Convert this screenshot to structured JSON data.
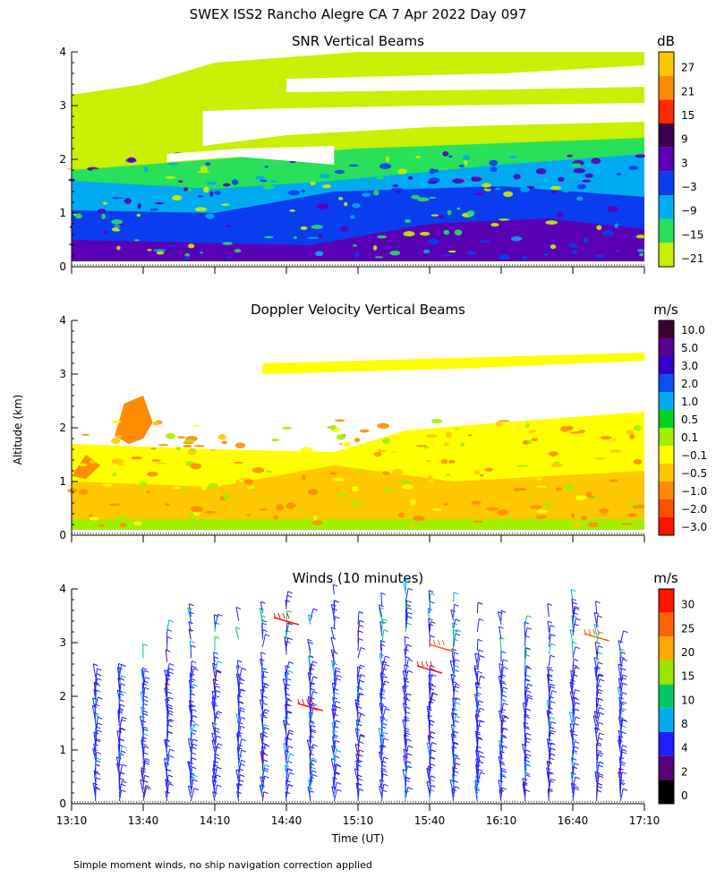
{
  "title": "SWEX ISS2 Rancho Alegre CA    7 Apr 2022 Day 097",
  "shared_ylabel": "Altitude (km)",
  "xlabel": "Time (UT)",
  "footnote": "Simple moment winds, no ship navigation correction applied",
  "chart_data": [
    {
      "type": "heatmap",
      "title": "SNR Vertical Beams",
      "colorbar_unit": "dB",
      "colorbar_labels": [
        "27",
        "21",
        "15",
        "9",
        "3",
        "−3",
        "−9",
        "−15",
        "−21"
      ],
      "colorbar_colors": [
        "#ffc800",
        "#ff8c00",
        "#ff2800",
        "#3c0050",
        "#5a00b4",
        "#0a3cf0",
        "#00aaf0",
        "#28e05a",
        "#c8f000"
      ],
      "ylim": [
        0,
        4
      ],
      "yticks": [
        "0",
        "1",
        "2",
        "3",
        "4"
      ],
      "x_range_minutes": [
        0,
        240
      ],
      "x_minor_ticks": 8,
      "layers": [
        {
          "color": "#c8f000",
          "points": [
            [
              0,
              0.1
            ],
            [
              0,
              3.2
            ],
            [
              30,
              3.4
            ],
            [
              60,
              3.8
            ],
            [
              120,
              4.0
            ],
            [
              240,
              4.0
            ],
            [
              240,
              0.1
            ]
          ]
        },
        {
          "color": "#28e05a",
          "points": [
            [
              0,
              0.1
            ],
            [
              0,
              1.8
            ],
            [
              60,
              2.0
            ],
            [
              120,
              2.2
            ],
            [
              180,
              2.3
            ],
            [
              240,
              2.4
            ],
            [
              240,
              0.1
            ]
          ]
        },
        {
          "color": "#00aaf0",
          "points": [
            [
              0,
              0.1
            ],
            [
              0,
              1.6
            ],
            [
              60,
              1.45
            ],
            [
              110,
              1.6
            ],
            [
              180,
              1.9
            ],
            [
              240,
              2.1
            ],
            [
              240,
              0.1
            ]
          ]
        },
        {
          "color": "#0a3cf0",
          "points": [
            [
              0,
              0.1
            ],
            [
              0,
              1.05
            ],
            [
              60,
              1.0
            ],
            [
              110,
              1.4
            ],
            [
              180,
              1.5
            ],
            [
              240,
              1.3
            ],
            [
              240,
              0.1
            ]
          ]
        },
        {
          "color": "#5a00b4",
          "points": [
            [
              0,
              0.1
            ],
            [
              0,
              0.5
            ],
            [
              100,
              0.4
            ],
            [
              150,
              0.8
            ],
            [
              200,
              0.9
            ],
            [
              240,
              0.7
            ],
            [
              240,
              0.1
            ]
          ]
        }
      ],
      "blanks": [
        {
          "points": [
            [
              55,
              2.25
            ],
            [
              90,
              2.45
            ],
            [
              150,
              2.6
            ],
            [
              240,
              2.7
            ],
            [
              240,
              3.05
            ],
            [
              150,
              3.0
            ],
            [
              90,
              2.95
            ],
            [
              55,
              2.9
            ]
          ]
        },
        {
          "points": [
            [
              40,
              1.95
            ],
            [
              70,
              2.05
            ],
            [
              110,
              1.9
            ],
            [
              110,
              2.25
            ],
            [
              70,
              2.2
            ],
            [
              40,
              2.1
            ]
          ]
        },
        {
          "points": [
            [
              90,
              3.25
            ],
            [
              180,
              3.3
            ],
            [
              240,
              3.35
            ],
            [
              240,
              3.75
            ],
            [
              180,
              3.6
            ],
            [
              90,
              3.5
            ]
          ]
        }
      ]
    },
    {
      "type": "heatmap",
      "title": "Doppler Velocity Vertical Beams",
      "colorbar_unit": "m/s",
      "colorbar_labels": [
        "10.0",
        "5.0",
        "3.0",
        "2.0",
        "1.0",
        "0.5",
        "0.1",
        "−0.1",
        "−0.5",
        "−1.0",
        "−2.0",
        "−3.0"
      ],
      "colorbar_colors": [
        "#3c0032",
        "#5a0090",
        "#3200c8",
        "#0a50f0",
        "#00aaf0",
        "#00d21e",
        "#a0f000",
        "#ffff00",
        "#ffc800",
        "#ff8c00",
        "#ff5000",
        "#ff1400"
      ],
      "ylim": [
        0,
        4
      ],
      "yticks": [
        "0",
        "1",
        "2",
        "3",
        "4"
      ],
      "x_range_minutes": [
        0,
        240
      ],
      "x_minor_ticks": 8,
      "layers": [
        {
          "color": "#ffff00",
          "points": [
            [
              0,
              0.1
            ],
            [
              0,
              1.7
            ],
            [
              60,
              1.6
            ],
            [
              110,
              1.55
            ],
            [
              140,
              1.95
            ],
            [
              180,
              2.1
            ],
            [
              240,
              2.3
            ],
            [
              240,
              0.1
            ]
          ]
        },
        {
          "color": "#a0f000",
          "points": [
            [
              0,
              0.1
            ],
            [
              0,
              0.45
            ],
            [
              240,
              0.35
            ],
            [
              240,
              0.1
            ]
          ]
        },
        {
          "color": "#ffc800",
          "points": [
            [
              0,
              0.3
            ],
            [
              240,
              0.3
            ],
            [
              240,
              1.2
            ],
            [
              160,
              1.0
            ],
            [
              110,
              1.3
            ],
            [
              60,
              0.9
            ],
            [
              0,
              1.0
            ]
          ]
        },
        {
          "color": "#ff8c00",
          "points": [
            [
              18,
              1.85
            ],
            [
              22,
              2.45
            ],
            [
              30,
              2.6
            ],
            [
              34,
              2.1
            ],
            [
              30,
              1.8
            ],
            [
              24,
              1.7
            ]
          ]
        },
        {
          "color": "#ff8c00",
          "points": [
            [
              0,
              1.1
            ],
            [
              6,
              1.5
            ],
            [
              12,
              1.3
            ],
            [
              6,
              1.05
            ]
          ]
        }
      ],
      "blanks": [],
      "upper_band": {
        "color": "#ffff00",
        "points": [
          [
            80,
            3.0
          ],
          [
            160,
            3.1
          ],
          [
            240,
            3.25
          ],
          [
            240,
            3.4
          ],
          [
            160,
            3.3
          ],
          [
            80,
            3.2
          ]
        ]
      }
    },
    {
      "type": "wind_barbs",
      "title": "Winds (10 minutes)",
      "colorbar_unit": "m/s",
      "colorbar_labels": [
        "30",
        "25",
        "20",
        "15",
        "10",
        "8",
        "4",
        "2",
        "0"
      ],
      "colorbar_colors": [
        "#ff1400",
        "#ff6400",
        "#ffaa00",
        "#96e600",
        "#00c864",
        "#00aaf0",
        "#1e1eff",
        "#5a0078",
        "#000000"
      ],
      "ylim": [
        0,
        4
      ],
      "yticks": [
        "0",
        "1",
        "2",
        "3",
        "4"
      ],
      "xticks": [
        "13:10",
        "13:40",
        "14:10",
        "14:40",
        "15:10",
        "15:40",
        "16:10",
        "16:40",
        "17:10"
      ],
      "x_range_minutes": [
        0,
        240
      ],
      "x_minor_ticks": 8,
      "profile_times_min": [
        10,
        20,
        30,
        40,
        50,
        60,
        70,
        80,
        90,
        100,
        110,
        120,
        130,
        140,
        150,
        160,
        170,
        180,
        190,
        200,
        210,
        220,
        230
      ],
      "profile_top_km": [
        2.4,
        2.5,
        2.8,
        3.2,
        3.5,
        3.6,
        3.6,
        3.9,
        3.8,
        3.6,
        3.9,
        3.7,
        3.8,
        4.0,
        3.8,
        3.8,
        3.6,
        3.5,
        3.5,
        3.6,
        3.9,
        3.6,
        3.3
      ],
      "highlights": [
        {
          "t": 100,
          "alt": 1.8,
          "color": "#ff1400"
        },
        {
          "t": 150,
          "alt": 2.5,
          "color": "#ff1400"
        },
        {
          "t": 90,
          "alt": 3.4,
          "color": "#ff1400"
        },
        {
          "t": 220,
          "alt": 3.1,
          "color": "#ff6400"
        },
        {
          "t": 155,
          "alt": 2.9,
          "color": "#ff6400"
        }
      ]
    }
  ]
}
